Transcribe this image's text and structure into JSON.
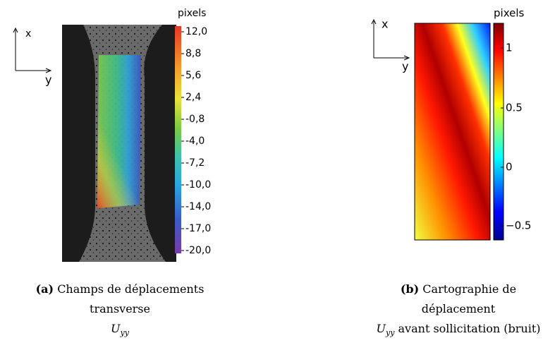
{
  "panels": [
    {
      "axis_x": "x",
      "axis_y": "y",
      "colorbar_title": "pixels",
      "colorbar_ticks": [
        "12,0",
        "8,8",
        "5,6",
        "2,4",
        "-0,8",
        "-4,0",
        "-7,2",
        "-10,0",
        "-14,0",
        "-17,0",
        "-20,0"
      ],
      "caption": {
        "label": "(a)",
        "text": "Champs de déplacements transverse",
        "symbol": "U",
        "subscript": "yy"
      }
    },
    {
      "axis_x": "x",
      "axis_y": "y",
      "colorbar_title": "pixels",
      "colorbar_ticks": [
        "1",
        "0.5",
        "0",
        "−0.5"
      ],
      "caption": {
        "label": "(b)",
        "text": "Cartographie de déplacement",
        "symbol": "U",
        "subscript": "yy",
        "tail": "avant sollicitation (bruit)"
      }
    }
  ]
}
